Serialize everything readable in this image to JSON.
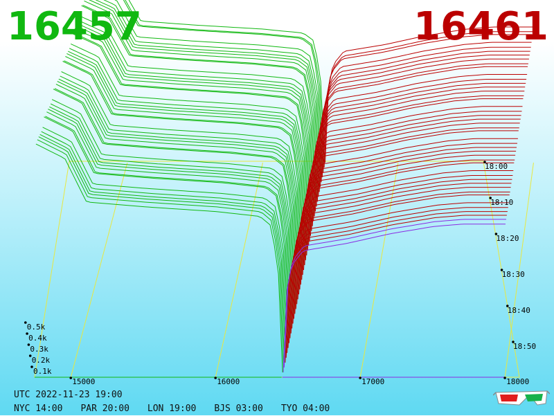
{
  "prices": {
    "bid": "16457",
    "ask": "16461"
  },
  "colors": {
    "bid": "#10b810",
    "ask": "#bb0000",
    "frame": "#e8e840",
    "latest": "#8a2be2"
  },
  "footer": {
    "utc": "UTC 2022-11-23 19:00",
    "zones": [
      "NYC 14:00",
      "PAR 20:00",
      "LON 19:00",
      "BJS 03:00",
      "TYO 04:00"
    ]
  },
  "icons": {
    "glasses": "3d-glasses-icon"
  },
  "chart_data": {
    "type": "area",
    "title": "",
    "x_ticks": [
      15000,
      16000,
      17000,
      18000
    ],
    "x_tick_labels": [
      "15000",
      "16000",
      "17000",
      "18000"
    ],
    "xlim": [
      14750,
      18100
    ],
    "y_ticks": [
      100,
      200,
      300,
      400,
      500
    ],
    "y_tick_labels": [
      "0.1k",
      "0.2k",
      "0.3k",
      "0.4k",
      "0.5k"
    ],
    "time_ticks": [
      "18:00",
      "18:10",
      "18:20",
      "18:30",
      "18:40",
      "18:50"
    ],
    "bid_price": 16457,
    "ask_price": 16461,
    "series": [
      {
        "side": "bid",
        "x": [
          14750,
          14950,
          15100,
          15500,
          16000,
          16300,
          16380,
          16430,
          16457
        ],
        "y": [
          470,
          440,
          350,
          340,
          330,
          320,
          300,
          200,
          0
        ]
      },
      {
        "side": "ask",
        "x": [
          16461,
          16480,
          16520,
          16600,
          16900,
          17200,
          17500,
          17700,
          18000
        ],
        "y": [
          0,
          160,
          220,
          250,
          265,
          285,
          300,
          305,
          305
        ]
      }
    ]
  }
}
